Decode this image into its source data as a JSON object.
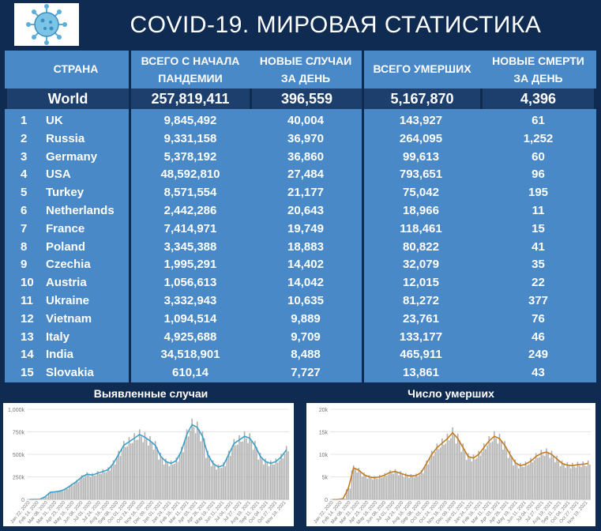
{
  "header": {
    "title": "COVID-19. МИРОВАЯ СТАТИСТИКА",
    "logo_icon": "virus-icon"
  },
  "table": {
    "columns": {
      "country": "СТРАНА",
      "total_cases_l1": "ВСЕГО С НАЧАЛА",
      "total_cases_l2": "ПАНДЕМИИ",
      "new_cases_l1": "НОВЫЕ СЛУЧАИ",
      "new_cases_l2": "ЗА ДЕНЬ",
      "total_deaths": "ВСЕГО УМЕРШИХ",
      "new_deaths_l1": "НОВЫЕ СМЕРТИ",
      "new_deaths_l2": "ЗА ДЕНЬ"
    },
    "world": {
      "name": "World",
      "total": "257,819,411",
      "new": "396,559",
      "deaths": "5,167,870",
      "new_deaths": "4,396"
    },
    "rows": [
      {
        "rank": "1",
        "name": "UK",
        "total": "9,845,492",
        "new": "40,004",
        "deaths": "143,927",
        "new_deaths": "61"
      },
      {
        "rank": "2",
        "name": "Russia",
        "total": "9,331,158",
        "new": "36,970",
        "deaths": "264,095",
        "new_deaths": "1,252"
      },
      {
        "rank": "3",
        "name": "Germany",
        "total": "5,378,192",
        "new": "36,860",
        "deaths": "99,613",
        "new_deaths": "60"
      },
      {
        "rank": "4",
        "name": "USA",
        "total": "48,592,810",
        "new": "27,484",
        "deaths": "793,651",
        "new_deaths": "96"
      },
      {
        "rank": "5",
        "name": "Turkey",
        "total": "8,571,554",
        "new": "21,177",
        "deaths": "75,042",
        "new_deaths": "195"
      },
      {
        "rank": "6",
        "name": "Netherlands",
        "total": "2,442,286",
        "new": "20,643",
        "deaths": "18,966",
        "new_deaths": "11"
      },
      {
        "rank": "7",
        "name": "France",
        "total": "7,414,971",
        "new": "19,749",
        "deaths": "118,461",
        "new_deaths": "15"
      },
      {
        "rank": "8",
        "name": "Poland",
        "total": "3,345,388",
        "new": "18,883",
        "deaths": "80,822",
        "new_deaths": "41"
      },
      {
        "rank": "9",
        "name": "Czechia",
        "total": "1,995,291",
        "new": "14,402",
        "deaths": "32,079",
        "new_deaths": "35"
      },
      {
        "rank": "10",
        "name": "Austria",
        "total": "1,056,613",
        "new": "14,042",
        "deaths": "12,015",
        "new_deaths": "22"
      },
      {
        "rank": "11",
        "name": "Ukraine",
        "total": "3,332,943",
        "new": "10,635",
        "deaths": "81,272",
        "new_deaths": "377"
      },
      {
        "rank": "12",
        "name": "Vietnam",
        "total": "1,094,514",
        "new": "9,889",
        "deaths": "23,761",
        "new_deaths": "76"
      },
      {
        "rank": "13",
        "name": "Italy",
        "total": "4,925,688",
        "new": "9,709",
        "deaths": "133,177",
        "new_deaths": "46"
      },
      {
        "rank": "14",
        "name": "India",
        "total": "34,518,901",
        "new": "8,488",
        "deaths": "465,911",
        "new_deaths": "249"
      },
      {
        "rank": "15",
        "name": "Slovakia",
        "total": "610,14",
        "new": "7,727",
        "deaths": "13,861",
        "new_deaths": "43"
      }
    ]
  },
  "chart_data": [
    {
      "type": "bar",
      "title": "Выявленные случаи",
      "y_ticks": [
        "0",
        "250k",
        "500k",
        "750k",
        "1,000k"
      ],
      "ylim": [
        0,
        1000000
      ],
      "x_ticks": [
        "Jan 22, 2020",
        "Feb 14, 2020",
        "Mar 08, 2020",
        "Mar 31, 2020",
        "Apr 23, 2020",
        "May 16, 2020",
        "Jun 08, 2020",
        "Jul 01, 2020",
        "Jul 24, 2020",
        "Aug 16, 2020",
        "Sep 08, 2020",
        "Oct 01, 2020",
        "Oct 24, 2020",
        "Nov 16, 2020",
        "Dec 09, 2020",
        "Jan 01, 2021",
        "Jan 24, 2021",
        "Feb 16, 2021",
        "Mar 11, 2021",
        "Apr 03, 2021",
        "Apr 26, 2021",
        "May 19, 2021",
        "Jun 11, 2021",
        "Jul 04, 2021",
        "Jul 27, 2021",
        "Aug 19, 2021",
        "Sep 11, 2021",
        "Oct 04, 2021",
        "Oct 27, 2021",
        "Nov 19, 2021"
      ],
      "series": [
        {
          "values": [
            0,
            2000,
            3000,
            30000,
            80000,
            85000,
            95000,
            120000,
            160000,
            200000,
            250000,
            280000,
            270000,
            290000,
            310000,
            330000,
            400000,
            500000,
            600000,
            640000,
            680000,
            720000,
            690000,
            650000,
            600000,
            480000,
            420000,
            400000,
            430000,
            540000,
            720000,
            830000,
            800000,
            700000,
            500000,
            400000,
            360000,
            380000,
            500000,
            620000,
            660000,
            700000,
            680000,
            600000,
            480000,
            420000,
            400000,
            420000,
            470000,
            550000
          ],
          "color": "#3aa0c8"
        }
      ]
    },
    {
      "type": "bar",
      "title": "Число умерших",
      "y_ticks": [
        "0",
        "5k",
        "10k",
        "15k",
        "20k"
      ],
      "ylim": [
        0,
        20000
      ],
      "x_ticks": [
        "Jan 22, 2020",
        "Feb 14, 2020",
        "Mar 08, 2020",
        "Mar 31, 2020",
        "Apr 23, 2020",
        "May 16, 2020",
        "Jun 08, 2020",
        "Jul 01, 2020",
        "Jul 24, 2020",
        "Aug 16, 2020",
        "Sep 08, 2020",
        "Oct 01, 2020",
        "Oct 24, 2020",
        "Nov 16, 2020",
        "Dec 09, 2020",
        "Jan 01, 2021",
        "Jan 24, 2021",
        "Feb 16, 2021",
        "Mar 11, 2021",
        "Apr 03, 2021",
        "Apr 26, 2021",
        "May 19, 2021",
        "Jun 11, 2021",
        "Jul 04, 2021",
        "Jul 27, 2021",
        "Aug 19, 2021",
        "Sep 11, 2021",
        "Oct 04, 2021",
        "Oct 27, 2021",
        "Nov 19, 2021"
      ],
      "series": [
        {
          "values": [
            0,
            0,
            200,
            2500,
            7000,
            6500,
            5500,
            5000,
            4800,
            5000,
            5400,
            6000,
            6200,
            5800,
            5400,
            5200,
            5300,
            6000,
            8000,
            10000,
            11500,
            12500,
            13500,
            14800,
            13500,
            11500,
            9500,
            9200,
            10000,
            11500,
            13000,
            14000,
            13500,
            12000,
            10000,
            8200,
            7500,
            7800,
            8500,
            9500,
            10200,
            10500,
            10000,
            9000,
            8000,
            7600,
            7500,
            7700,
            7800,
            8000
          ],
          "color": "#c47a1e"
        }
      ]
    }
  ]
}
